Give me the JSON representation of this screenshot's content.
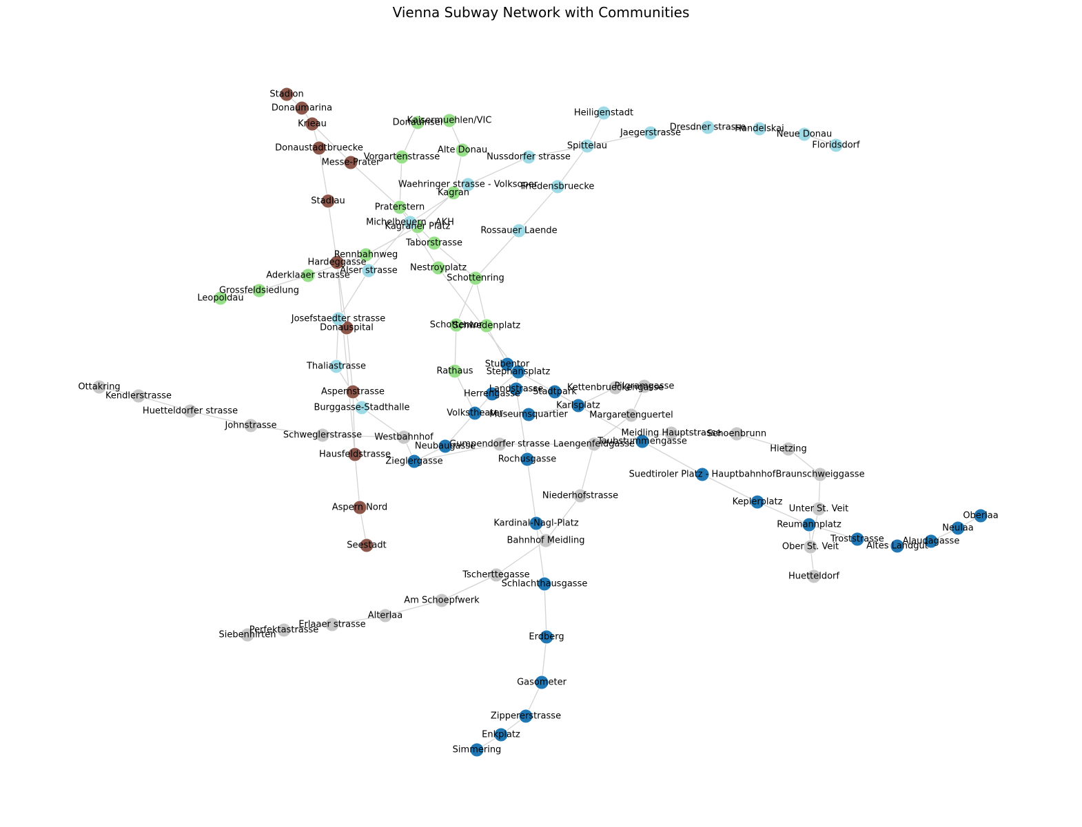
{
  "title": "Vienna Subway Network with Communities",
  "community_colors": {
    "red": "#8c564b",
    "green": "#98df8a",
    "cyan": "#9edae5",
    "blue": "#1f77b4",
    "gray": "#c7c7c7"
  },
  "nodes": [
    {
      "id": "Stadion",
      "community": "red"
    },
    {
      "id": "Donaumarina",
      "community": "red"
    },
    {
      "id": "Krieau",
      "community": "red"
    },
    {
      "id": "Donaustadtbruecke",
      "community": "red"
    },
    {
      "id": "Messe-Prater",
      "community": "red"
    },
    {
      "id": "Stadlau",
      "community": "red"
    },
    {
      "id": "Hardeggasse",
      "community": "red"
    },
    {
      "id": "Donauspital",
      "community": "red"
    },
    {
      "id": "Aspernstrasse",
      "community": "red"
    },
    {
      "id": "Hausfeldstrasse",
      "community": "red"
    },
    {
      "id": "Aspern Nord",
      "community": "red"
    },
    {
      "id": "Seestadt",
      "community": "red"
    },
    {
      "id": "Donauinsel",
      "community": "green"
    },
    {
      "id": "Kaisermuehlen/VIC",
      "community": "green"
    },
    {
      "id": "Alte Donau",
      "community": "green"
    },
    {
      "id": "Vorgartenstrasse",
      "community": "green"
    },
    {
      "id": "Kagran",
      "community": "green"
    },
    {
      "id": "Praterstern",
      "community": "green"
    },
    {
      "id": "Kagraner Platz",
      "community": "green"
    },
    {
      "id": "Taborstrasse",
      "community": "green"
    },
    {
      "id": "Rennbahnweg",
      "community": "green"
    },
    {
      "id": "Aderklaaer strasse",
      "community": "green"
    },
    {
      "id": "Grossfeldsiedlung",
      "community": "green"
    },
    {
      "id": "Leopoldau",
      "community": "green"
    },
    {
      "id": "Nestroyplatz",
      "community": "green"
    },
    {
      "id": "Schottenring",
      "community": "green"
    },
    {
      "id": "Schottentor",
      "community": "green"
    },
    {
      "id": "Schwedenplatz",
      "community": "green"
    },
    {
      "id": "Rathaus",
      "community": "green"
    },
    {
      "id": "Heiligenstadt",
      "community": "cyan"
    },
    {
      "id": "Spittelau",
      "community": "cyan"
    },
    {
      "id": "Jaegerstrasse",
      "community": "cyan"
    },
    {
      "id": "Dresdner strasse",
      "community": "cyan"
    },
    {
      "id": "Handelskai",
      "community": "cyan"
    },
    {
      "id": "Neue Donau",
      "community": "cyan"
    },
    {
      "id": "Floridsdorf",
      "community": "cyan"
    },
    {
      "id": "Nussdorfer strasse",
      "community": "cyan"
    },
    {
      "id": "Waehringer strasse - Volksoper",
      "community": "cyan"
    },
    {
      "id": "Friedensbruecke",
      "community": "cyan"
    },
    {
      "id": "Rossauer Laende",
      "community": "cyan"
    },
    {
      "id": "Michelbeuern - AKH",
      "community": "cyan"
    },
    {
      "id": "Alser strasse",
      "community": "cyan"
    },
    {
      "id": "Josefstaedter strasse",
      "community": "cyan"
    },
    {
      "id": "Thaliastrasse",
      "community": "cyan"
    },
    {
      "id": "Burggasse-Stadthalle",
      "community": "cyan"
    },
    {
      "id": "Stubentor",
      "community": "blue"
    },
    {
      "id": "Stephansplatz",
      "community": "blue"
    },
    {
      "id": "Landstrasse",
      "community": "blue"
    },
    {
      "id": "Herrengasse",
      "community": "blue"
    },
    {
      "id": "Stadtpark",
      "community": "blue"
    },
    {
      "id": "Karlsplatz",
      "community": "blue"
    },
    {
      "id": "Volkstheater",
      "community": "blue"
    },
    {
      "id": "Museumsquartier",
      "community": "blue"
    },
    {
      "id": "Neubaugasse",
      "community": "blue"
    },
    {
      "id": "Zieglergasse",
      "community": "blue"
    },
    {
      "id": "Rochusgasse",
      "community": "blue"
    },
    {
      "id": "Taubstummengasse",
      "community": "blue"
    },
    {
      "id": "Suedtiroler Platz - Hauptbahnhof",
      "community": "blue"
    },
    {
      "id": "Keplerplatz",
      "community": "blue"
    },
    {
      "id": "Reumannplatz",
      "community": "blue"
    },
    {
      "id": "Troststrasse",
      "community": "blue"
    },
    {
      "id": "Altes Landgut",
      "community": "blue"
    },
    {
      "id": "Alaudagasse",
      "community": "blue"
    },
    {
      "id": "Neulaa",
      "community": "blue"
    },
    {
      "id": "Oberlaa",
      "community": "blue"
    },
    {
      "id": "Kardinal-Nagl-Platz",
      "community": "blue"
    },
    {
      "id": "Schlachthausgasse",
      "community": "blue"
    },
    {
      "id": "Erdberg",
      "community": "blue"
    },
    {
      "id": "Gasometer",
      "community": "blue"
    },
    {
      "id": "Zippererstrasse",
      "community": "blue"
    },
    {
      "id": "Enkplatz",
      "community": "blue"
    },
    {
      "id": "Simmering",
      "community": "blue"
    },
    {
      "id": "Ottakring",
      "community": "gray"
    },
    {
      "id": "Kendlerstrasse",
      "community": "gray"
    },
    {
      "id": "Huetteldorfer strasse",
      "community": "gray"
    },
    {
      "id": "Johnstrasse",
      "community": "gray"
    },
    {
      "id": "Schweglerstrasse",
      "community": "gray"
    },
    {
      "id": "Westbahnhof",
      "community": "gray"
    },
    {
      "id": "Gumpendorfer strasse",
      "community": "gray"
    },
    {
      "id": "Laengenfeldgasse",
      "community": "gray"
    },
    {
      "id": "Pilgramgasse",
      "community": "gray"
    },
    {
      "id": "Kettenbrueckengasse",
      "community": "gray"
    },
    {
      "id": "Margaretenguertel",
      "community": "gray"
    },
    {
      "id": "Meidling Hauptstrasse",
      "community": "gray"
    },
    {
      "id": "Schoenbrunn",
      "community": "gray"
    },
    {
      "id": "Hietzing",
      "community": "gray"
    },
    {
      "id": "Braunschweiggasse",
      "community": "gray"
    },
    {
      "id": "Unter St. Veit",
      "community": "gray"
    },
    {
      "id": "Ober St. Veit",
      "community": "gray"
    },
    {
      "id": "Huetteldorf",
      "community": "gray"
    },
    {
      "id": "Niederhofstrasse",
      "community": "gray"
    },
    {
      "id": "Bahnhof Meidling",
      "community": "gray"
    },
    {
      "id": "Tscherttegasse",
      "community": "gray"
    },
    {
      "id": "Am Schoepfwerk",
      "community": "gray"
    },
    {
      "id": "Alterlaa",
      "community": "gray"
    },
    {
      "id": "Erlaaer strasse",
      "community": "gray"
    },
    {
      "id": "Perfektastrasse",
      "community": "gray"
    },
    {
      "id": "Siebenhirten",
      "community": "gray"
    }
  ],
  "edges": [
    [
      "Stadion",
      "Donaumarina"
    ],
    [
      "Donaumarina",
      "Krieau"
    ],
    [
      "Krieau",
      "Messe-Prater"
    ],
    [
      "Messe-Prater",
      "Praterstern"
    ],
    [
      "Krieau",
      "Donaustadtbruecke"
    ],
    [
      "Donaustadtbruecke",
      "Stadlau"
    ],
    [
      "Stadlau",
      "Hardeggasse"
    ],
    [
      "Hardeggasse",
      "Donauspital"
    ],
    [
      "Donauspital",
      "Aspernstrasse"
    ],
    [
      "Aspernstrasse",
      "Hausfeldstrasse"
    ],
    [
      "Hausfeldstrasse",
      "Aspern Nord"
    ],
    [
      "Aspern Nord",
      "Seestadt"
    ],
    [
      "Praterstern",
      "Taborstrasse"
    ],
    [
      "Taborstrasse",
      "Schottenring"
    ],
    [
      "Donauinsel",
      "Kaisermuehlen/VIC"
    ],
    [
      "Donauinsel",
      "Vorgartenstrasse"
    ],
    [
      "Vorgartenstrasse",
      "Praterstern"
    ],
    [
      "Praterstern",
      "Nestroyplatz"
    ],
    [
      "Nestroyplatz",
      "Stephansplatz"
    ],
    [
      "Kaisermuehlen/VIC",
      "Alte Donau"
    ],
    [
      "Alte Donau",
      "Kagran"
    ],
    [
      "Kagran",
      "Kagraner Platz"
    ],
    [
      "Kagraner Platz",
      "Rennbahnweg"
    ],
    [
      "Rennbahnweg",
      "Aderklaaer strasse"
    ],
    [
      "Aderklaaer strasse",
      "Grossfeldsiedlung"
    ],
    [
      "Grossfeldsiedlung",
      "Leopoldau"
    ],
    [
      "Schottenring",
      "Schottentor"
    ],
    [
      "Schottenring",
      "Schwedenplatz"
    ],
    [
      "Schottentor",
      "Rathaus"
    ],
    [
      "Rathaus",
      "Volkstheater"
    ],
    [
      "Schwedenplatz",
      "Stubentor"
    ],
    [
      "Stubentor",
      "Stephansplatz"
    ],
    [
      "Heiligenstadt",
      "Spittelau"
    ],
    [
      "Spittelau",
      "Jaegerstrasse"
    ],
    [
      "Jaegerstrasse",
      "Dresdner strasse"
    ],
    [
      "Dresdner strasse",
      "Handelskai"
    ],
    [
      "Handelskai",
      "Neue Donau"
    ],
    [
      "Neue Donau",
      "Floridsdorf"
    ],
    [
      "Spittelau",
      "Nussdorfer strasse"
    ],
    [
      "Nussdorfer strasse",
      "Waehringer strasse - Volksoper"
    ],
    [
      "Waehringer strasse - Volksoper",
      "Michelbeuern - AKH"
    ],
    [
      "Michelbeuern - AKH",
      "Alser strasse"
    ],
    [
      "Alser strasse",
      "Josefstaedter strasse"
    ],
    [
      "Josefstaedter strasse",
      "Thaliastrasse"
    ],
    [
      "Thaliastrasse",
      "Burggasse-Stadthalle"
    ],
    [
      "Burggasse-Stadthalle",
      "Westbahnhof"
    ],
    [
      "Spittelau",
      "Friedensbruecke"
    ],
    [
      "Friedensbruecke",
      "Rossauer Laende"
    ],
    [
      "Rossauer Laende",
      "Schottenring"
    ],
    [
      "Stephansplatz",
      "Herrengasse"
    ],
    [
      "Herrengasse",
      "Volkstheater"
    ],
    [
      "Stephansplatz",
      "Karlsplatz"
    ],
    [
      "Stephansplatz",
      "Landstrasse"
    ],
    [
      "Landstrasse",
      "Stadtpark"
    ],
    [
      "Stadtpark",
      "Karlsplatz"
    ],
    [
      "Karlsplatz",
      "Kettenbrueckengasse"
    ],
    [
      "Kettenbrueckengasse",
      "Pilgramgasse"
    ],
    [
      "Pilgramgasse",
      "Margaretenguertel"
    ],
    [
      "Margaretenguertel",
      "Laengenfeldgasse"
    ],
    [
      "Laengenfeldgasse",
      "Meidling Hauptstrasse"
    ],
    [
      "Meidling Hauptstrasse",
      "Schoenbrunn"
    ],
    [
      "Schoenbrunn",
      "Hietzing"
    ],
    [
      "Hietzing",
      "Braunschweiggasse"
    ],
    [
      "Braunschweiggasse",
      "Unter St. Veit"
    ],
    [
      "Unter St. Veit",
      "Ober St. Veit"
    ],
    [
      "Ober St. Veit",
      "Huetteldorf"
    ],
    [
      "Landstrasse",
      "Rochusgasse"
    ],
    [
      "Rochusgasse",
      "Kardinal-Nagl-Platz"
    ],
    [
      "Kardinal-Nagl-Platz",
      "Schlachthausgasse"
    ],
    [
      "Schlachthausgasse",
      "Erdberg"
    ],
    [
      "Erdberg",
      "Gasometer"
    ],
    [
      "Gasometer",
      "Zippererstrasse"
    ],
    [
      "Zippererstrasse",
      "Enkplatz"
    ],
    [
      "Enkplatz",
      "Simmering"
    ],
    [
      "Volkstheater",
      "Museumsquartier"
    ],
    [
      "Museumsquartier",
      "Karlsplatz"
    ],
    [
      "Volkstheater",
      "Neubaugasse"
    ],
    [
      "Neubaugasse",
      "Zieglergasse"
    ],
    [
      "Zieglergasse",
      "Gumpendorfer strasse"
    ],
    [
      "Gumpendorfer strasse",
      "Laengenfeldgasse"
    ],
    [
      "Laengenfeldgasse",
      "Niederhofstrasse"
    ],
    [
      "Niederhofstrasse",
      "Bahnhof Meidling"
    ],
    [
      "Bahnhof Meidling",
      "Tscherttegasse"
    ],
    [
      "Tscherttegasse",
      "Am Schoepfwerk"
    ],
    [
      "Am Schoepfwerk",
      "Alterlaa"
    ],
    [
      "Alterlaa",
      "Erlaaer strasse"
    ],
    [
      "Erlaaer strasse",
      "Perfektastrasse"
    ],
    [
      "Perfektastrasse",
      "Siebenhirten"
    ],
    [
      "Karlsplatz",
      "Taubstummengasse"
    ],
    [
      "Taubstummengasse",
      "Suedtiroler Platz - Hauptbahnhof"
    ],
    [
      "Suedtiroler Platz - Hauptbahnhof",
      "Keplerplatz"
    ],
    [
      "Keplerplatz",
      "Reumannplatz"
    ],
    [
      "Reumannplatz",
      "Troststrasse"
    ],
    [
      "Troststrasse",
      "Altes Landgut"
    ],
    [
      "Altes Landgut",
      "Alaudagasse"
    ],
    [
      "Alaudagasse",
      "Neulaa"
    ],
    [
      "Neulaa",
      "Oberlaa"
    ],
    [
      "Ottakring",
      "Kendlerstrasse"
    ],
    [
      "Kendlerstrasse",
      "Huetteldorfer strasse"
    ],
    [
      "Huetteldorfer strasse",
      "Johnstrasse"
    ],
    [
      "Johnstrasse",
      "Schweglerstrasse"
    ],
    [
      "Schweglerstrasse",
      "Westbahnhof"
    ],
    [
      "Westbahnhof",
      "Zieglergasse"
    ],
    [
      "Hausfeldstrasse",
      "Hardeggasse"
    ],
    [
      "Kardinal-Nagl-Platz",
      "Bahnhof Meidling"
    ],
    [
      "Reumannplatz",
      "Ober St. Veit"
    ]
  ]
}
